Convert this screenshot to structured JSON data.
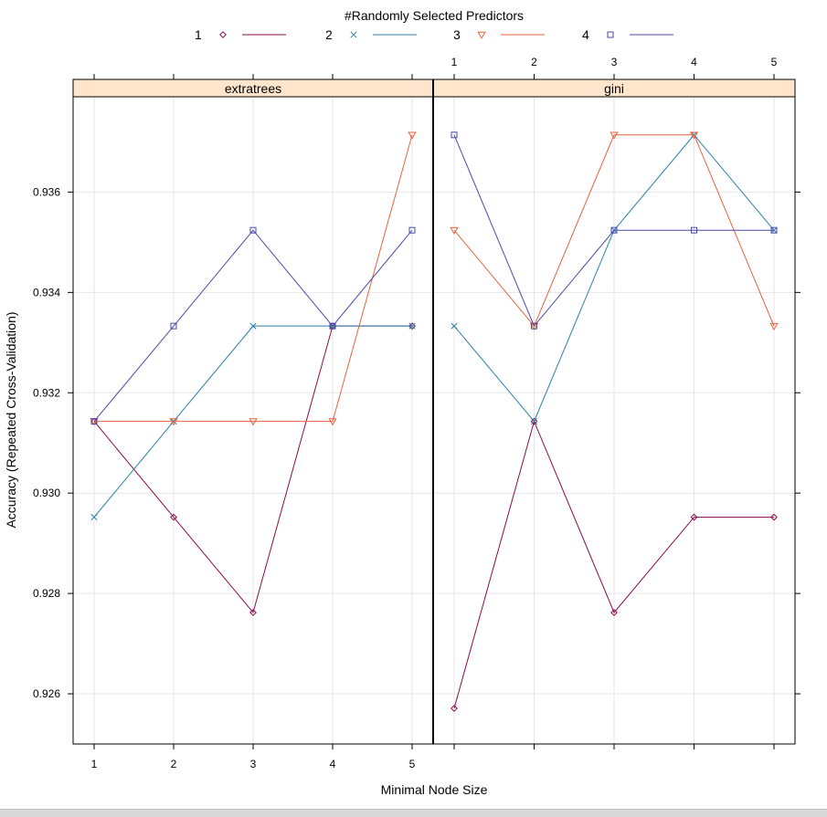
{
  "chart_data": {
    "type": "line",
    "legend_title": "#Randomly Selected Predictors",
    "xlabel": "Minimal Node Size",
    "ylabel": "Accuracy (Repeated Cross-Validation)",
    "x": [
      1,
      2,
      3,
      4,
      5
    ],
    "x_ticks": [
      "1",
      "2",
      "3",
      "4",
      "5"
    ],
    "y_ticks": [
      "0.926",
      "0.928",
      "0.930",
      "0.932",
      "0.934",
      "0.936"
    ],
    "y_tick_values": [
      0.926,
      0.928,
      0.93,
      0.932,
      0.934,
      0.936
    ],
    "ylim": [
      0.925,
      0.9379
    ],
    "grid": true,
    "legend_placement": "top",
    "series": [
      {
        "name": "1",
        "color": "#8b0a50",
        "marker": "diamond"
      },
      {
        "name": "2",
        "color": "#2b7fa6",
        "marker": "x"
      },
      {
        "name": "3",
        "color": "#e8623c",
        "marker": "triangle-down"
      },
      {
        "name": "4",
        "color": "#4a4aa8",
        "marker": "square"
      }
    ],
    "panels": [
      {
        "title": "extratrees",
        "series_values": [
          [
            0.93143,
            0.92952,
            0.92762,
            0.93333,
            0.93333
          ],
          [
            0.92952,
            0.93143,
            0.93333,
            0.93333,
            0.93333
          ],
          [
            0.93143,
            0.93143,
            0.93143,
            0.93143,
            0.93714
          ],
          [
            0.93143,
            0.93333,
            0.93524,
            0.93333,
            0.93524
          ]
        ]
      },
      {
        "title": "gini",
        "series_values": [
          [
            0.92571,
            0.93143,
            0.92762,
            0.92952,
            0.92952
          ],
          [
            0.93333,
            0.93143,
            0.93524,
            0.93714,
            0.93524
          ],
          [
            0.93524,
            0.93333,
            0.93714,
            0.93714,
            0.93333
          ],
          [
            0.93714,
            0.93333,
            0.93524,
            0.93524,
            0.93524
          ]
        ]
      }
    ]
  },
  "colors": {
    "strip_bg": "#ffe5cc",
    "grid": "#e6e6e6"
  }
}
